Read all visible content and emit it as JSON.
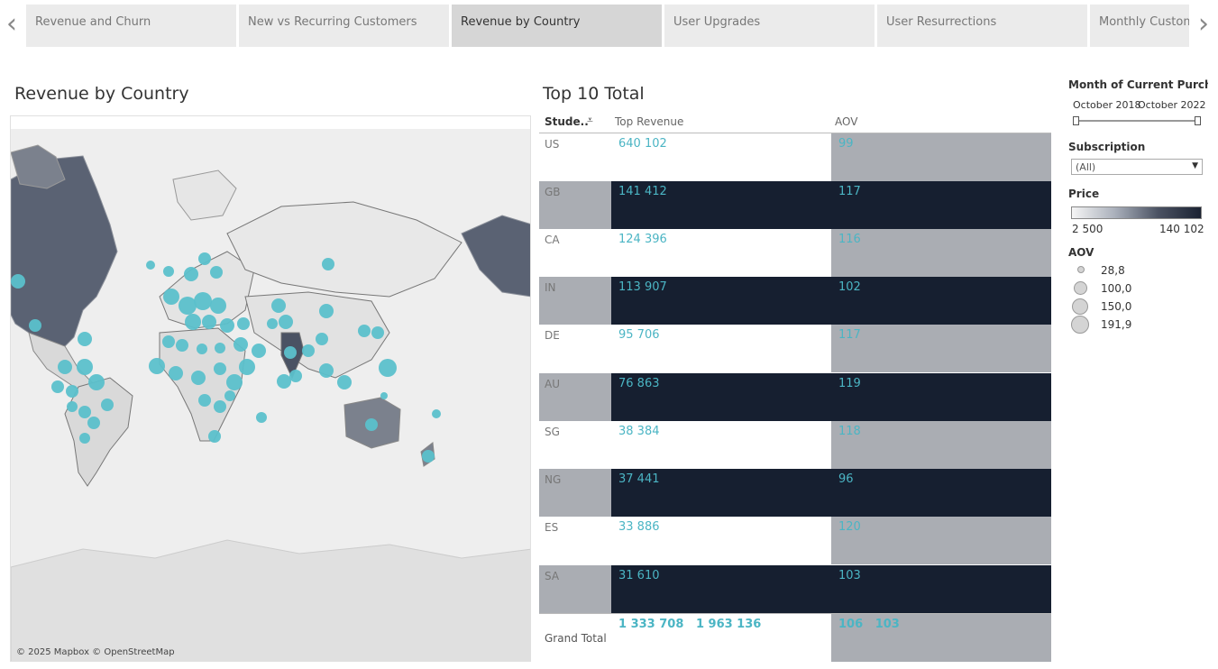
{
  "tabs": [
    {
      "label": "Revenue and Churn"
    },
    {
      "label": "New vs Recurring Customers"
    },
    {
      "label": "Revenue by Country"
    },
    {
      "label": "User Upgrades"
    },
    {
      "label": "User Resurrections"
    },
    {
      "label": "Monthly Customers"
    }
  ],
  "nav": {
    "prev_icon": "chevron-left-icon",
    "next_icon": "chevron-right-icon"
  },
  "map": {
    "title": "Revenue by Country",
    "attribution": "© 2025 Mapbox © OpenStreetMap"
  },
  "table": {
    "title": "Top 10 Total",
    "col_country": "Stude..",
    "col_revenue": "Top Revenue",
    "col_aov": "AOV",
    "sort_icon": "sort-descending-icon",
    "rows": [
      {
        "country": "US",
        "revenue": "640 102",
        "aov": "99"
      },
      {
        "country": "GB",
        "revenue": "141 412",
        "aov": "117"
      },
      {
        "country": "CA",
        "revenue": "124 396",
        "aov": "116"
      },
      {
        "country": "IN",
        "revenue": "113 907",
        "aov": "102"
      },
      {
        "country": "DE",
        "revenue": "95 706",
        "aov": "117"
      },
      {
        "country": "AU",
        "revenue": "76 863",
        "aov": "119"
      },
      {
        "country": "SG",
        "revenue": "38 384",
        "aov": "118"
      },
      {
        "country": "NG",
        "revenue": "37 441",
        "aov": "96"
      },
      {
        "country": "ES",
        "revenue": "33 886",
        "aov": "120"
      },
      {
        "country": "SA",
        "revenue": "31 610",
        "aov": "103"
      }
    ],
    "total": {
      "label": "Grand Total",
      "revenue": "1 333 708   1 963 136",
      "aov": "106   103"
    }
  },
  "filters": {
    "month_label": "Month of Current Purchas..",
    "month_start": "October 2018",
    "month_end": "October 2022",
    "subscription_label": "Subscription",
    "subscription_value": "(All)",
    "price_label": "Price",
    "price_min": "2 500",
    "price_max": "140 102",
    "aov_label": "AOV",
    "aov_legend": [
      "28,8",
      "100,0",
      "150,0",
      "191,9"
    ]
  },
  "colors": {
    "accent": "#4bb5c4",
    "dark": "#161f30",
    "grey": "#aaadb3"
  }
}
